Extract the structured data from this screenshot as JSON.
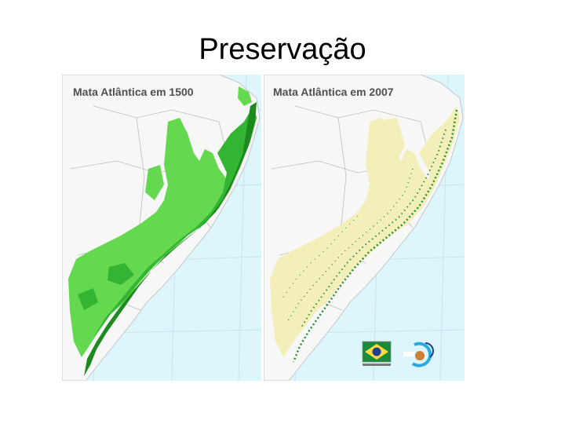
{
  "slide": {
    "title": "Preservação"
  },
  "maps": [
    {
      "label": "Mata Atlântica em 1500",
      "period": "1500"
    },
    {
      "label": "Mata Atlântica em 2007",
      "period": "2007"
    }
  ],
  "colors": {
    "ocean": "#dcf6fb",
    "land": "#f7f7f7",
    "borders": "#bdbdbd",
    "graticule": "#c7e5ee",
    "forest_dark": "#1c8a1c",
    "forest_mid": "#33b533",
    "forest_light": "#64d84e",
    "remnant_dark": "#2f8f2f",
    "remnant_light": "#f2efb8",
    "logo_green": "#1b8a3a",
    "logo_yellow": "#ffd83d",
    "logo_blue": "#1e3f8f",
    "logo_cyan": "#29a9e0"
  },
  "logos": [
    {
      "name": "brazil-flag-logo"
    },
    {
      "name": "inpe-logo"
    }
  ]
}
